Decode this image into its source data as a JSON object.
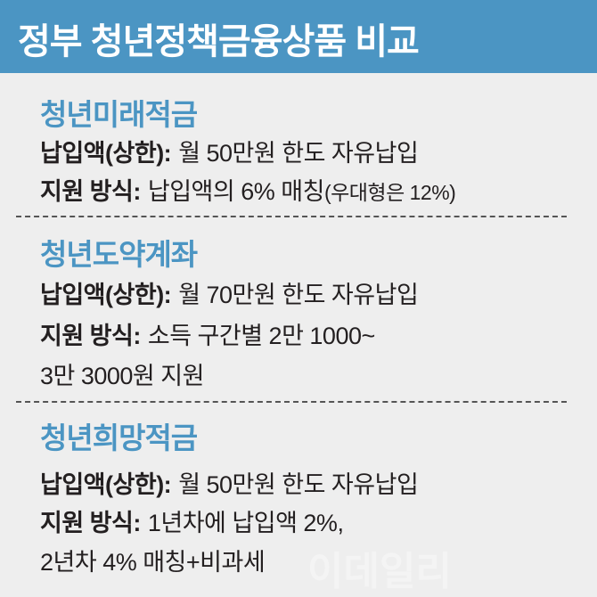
{
  "header": {
    "title": "정부 청년정책금융상품 비교",
    "color": "#4b95c3"
  },
  "sections": [
    {
      "title": "청년미래적금",
      "payment_label": "납입액(상한):",
      "payment_value": "월 50만원 한도 자유납입",
      "support_label": "지원 방식:",
      "support_value": "납입액의 6% 매칭",
      "support_note": "(우대형은 12%)"
    },
    {
      "title": "청년도약계좌",
      "payment_label": "납입액(상한):",
      "payment_value": "월 70만원 한도 자유납입",
      "support_label": "지원 방식:",
      "support_value": "소득 구간별 2만 1000~",
      "support_value_2": "3만 3000원 지원"
    },
    {
      "title": "청년희망적금",
      "payment_label": "납입액(상한):",
      "payment_value": "월 50만원 한도 자유납입",
      "support_label": "지원 방식:",
      "support_value": "1년차에 납입액 2%,",
      "support_value_2": "2년차 4% 매칭+비과세"
    }
  ],
  "watermark": "이데일리"
}
